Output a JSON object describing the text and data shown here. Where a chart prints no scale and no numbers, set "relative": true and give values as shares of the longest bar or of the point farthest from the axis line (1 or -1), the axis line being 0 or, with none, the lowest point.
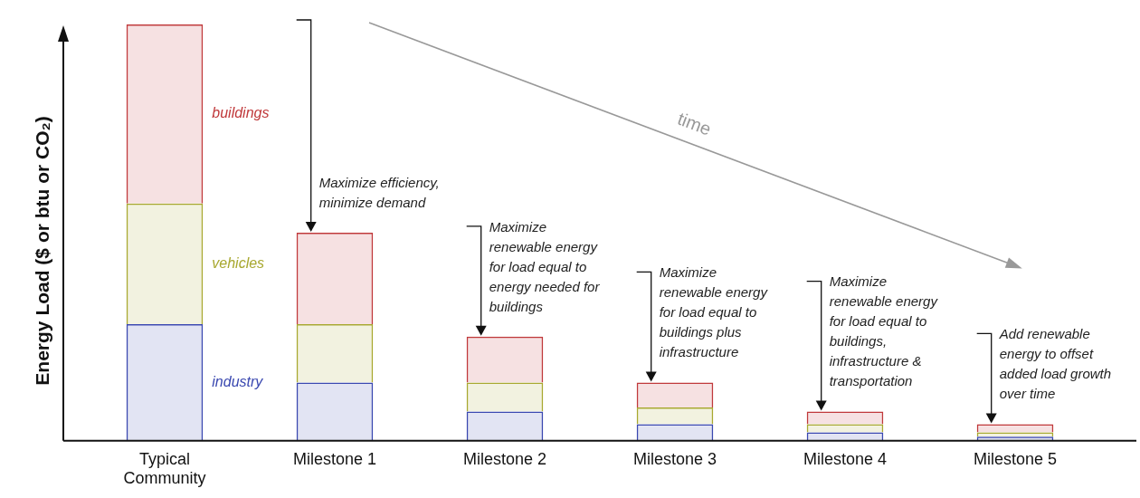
{
  "chart_data": {
    "type": "bar",
    "stacked": true,
    "relative": true,
    "ylabel": "Energy Load ($ or btu or CO₂)",
    "categories": [
      "Typical Community",
      "Milestone 1",
      "Milestone 2",
      "Milestone 3",
      "Milestone 4",
      "Milestone 5"
    ],
    "series": [
      {
        "name": "industry",
        "color": "#3a48b0",
        "values": [
          0.28,
          0.14,
          0.07,
          0.04,
          0.02,
          0.01
        ]
      },
      {
        "name": "vehicles",
        "color": "#a8a830",
        "values": [
          0.29,
          0.14,
          0.07,
          0.04,
          0.02,
          0.01
        ]
      },
      {
        "name": "buildings",
        "color": "#c0393b",
        "values": [
          0.43,
          0.22,
          0.11,
          0.06,
          0.03,
          0.02
        ]
      }
    ],
    "annotations": [
      {
        "text": "Maximize efficiency, minimize demand",
        "x": "Milestone 1",
        "y": 0.5
      },
      {
        "text": "Maximize renewable energy for load equal to energy needed for buildings",
        "x": "Milestone 2",
        "y": 0.25
      },
      {
        "text": "Maximize renewable energy for load equal to buildings plus infrastructure",
        "x": "Milestone 3",
        "y": 0.14
      },
      {
        "text": "Maximize renewable energy for load equal to buildings, infrastructure & transportation",
        "x": "Milestone 4",
        "y": 0.07
      },
      {
        "text": "Add renewable energy to offset added load growth over time",
        "x": "Milestone 5",
        "y": 0.04
      },
      "time"
    ],
    "legend": false,
    "grid": false
  }
}
